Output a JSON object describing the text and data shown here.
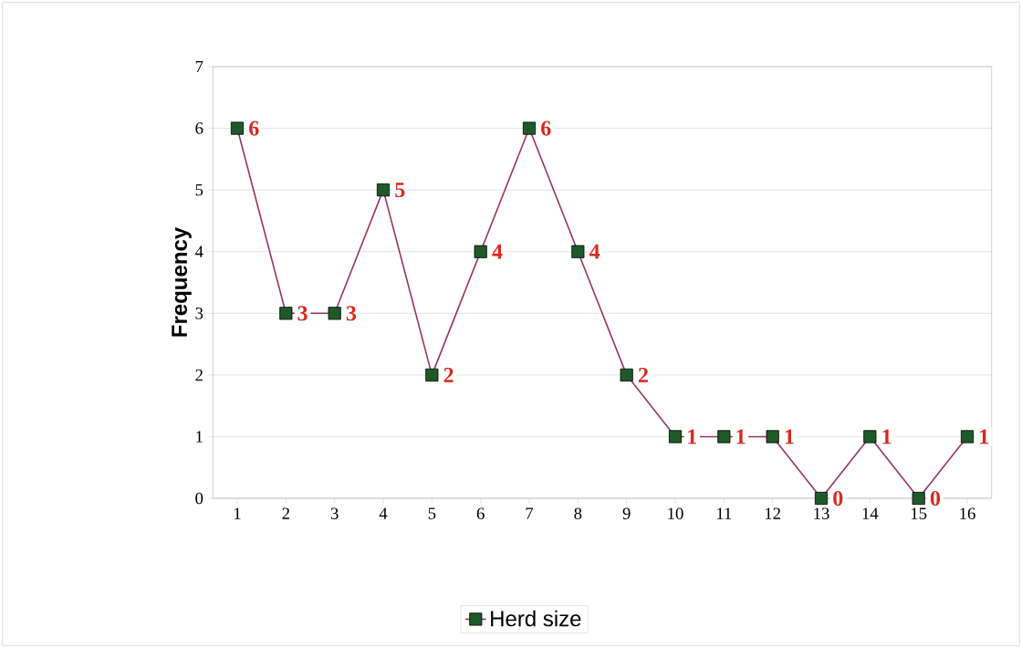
{
  "chart_data": {
    "type": "line",
    "ylabel": "Frequency",
    "categories": [
      "1",
      "2",
      "3",
      "4",
      "5",
      "6",
      "7",
      "8",
      "9",
      "10",
      "11",
      "12",
      "13",
      "14",
      "15",
      "16"
    ],
    "series": [
      {
        "name": "Herd size",
        "color": "#993366",
        "values": [
          6,
          3,
          3,
          5,
          2,
          4,
          6,
          4,
          2,
          1,
          1,
          1,
          0,
          1,
          0,
          1
        ]
      }
    ],
    "ylim": [
      0,
      7
    ],
    "yticks": [
      0,
      1,
      2,
      3,
      4,
      5,
      6,
      7
    ],
    "grid": "y",
    "legend": "bottom",
    "marker": "square",
    "data_labels": true
  }
}
